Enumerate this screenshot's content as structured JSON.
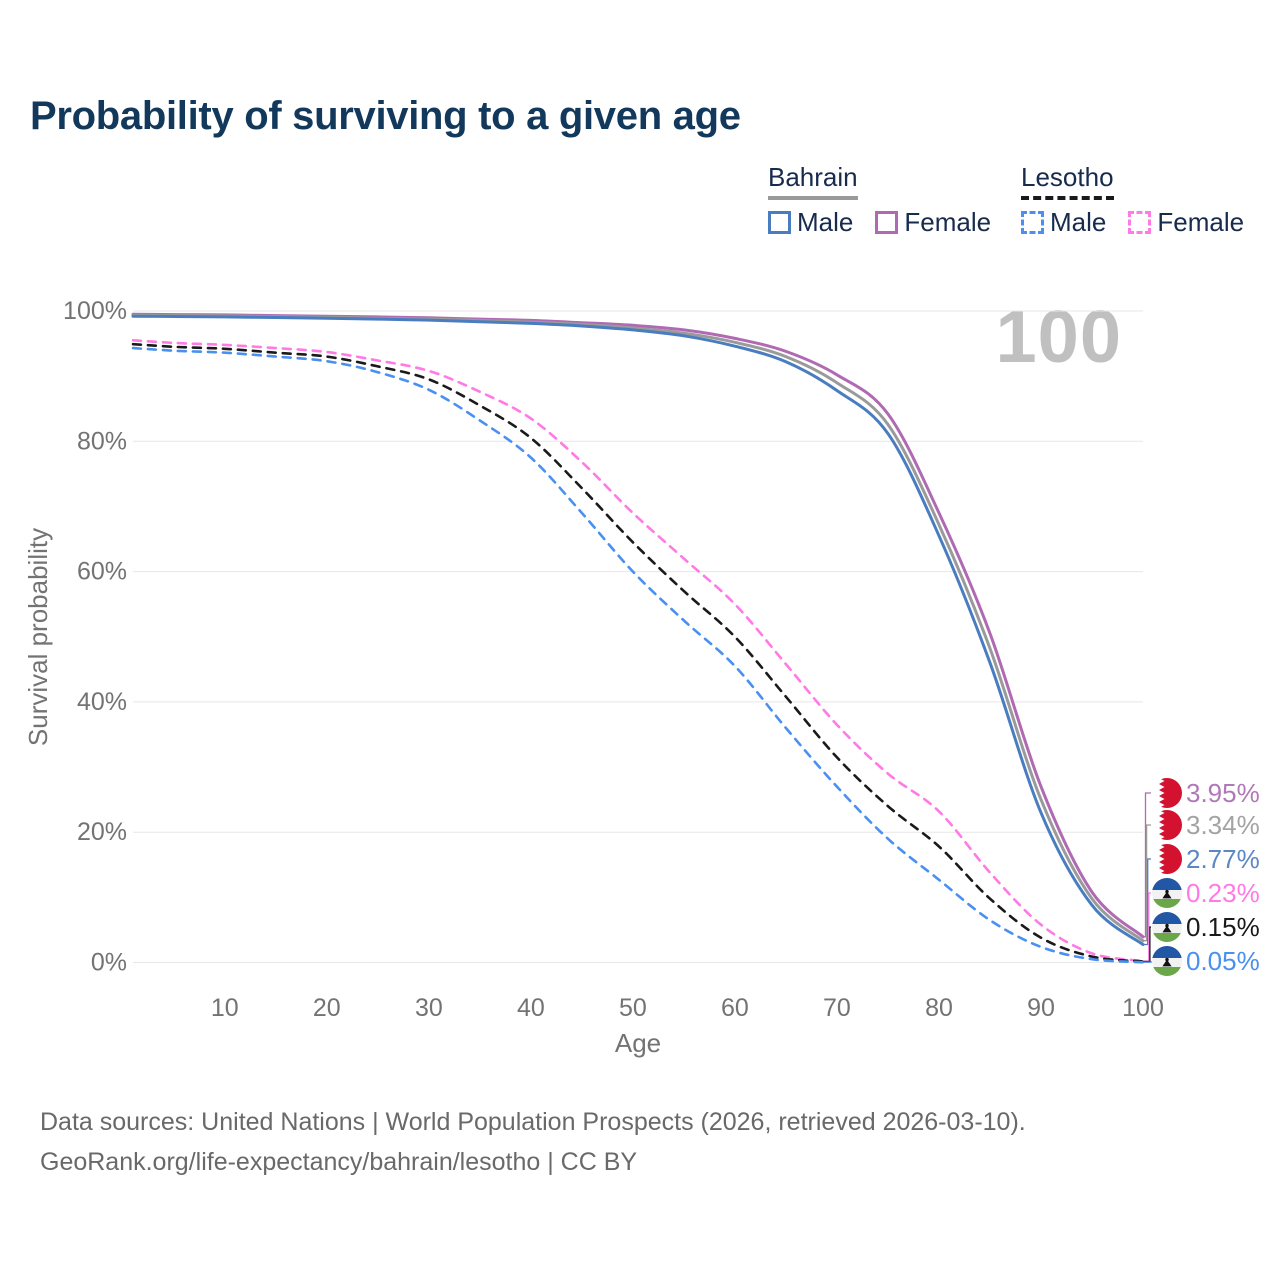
{
  "title": "Probability of surviving to a given age",
  "watermark_age_label": "100",
  "legend": {
    "groups": [
      {
        "label": "Bahrain",
        "line_style": "solid",
        "underline_color": "#9a9a9a",
        "items": [
          {
            "label": "Male",
            "color": "#4a7dc0"
          },
          {
            "label": "Female",
            "color": "#b06ab3"
          }
        ]
      },
      {
        "label": "Lesotho",
        "line_style": "dashed",
        "underline_color": "#1a1a1a",
        "items": [
          {
            "label": "Male",
            "color": "#4a90f0"
          },
          {
            "label": "Female",
            "color": "#ff7ae5"
          }
        ]
      }
    ]
  },
  "chart_data": {
    "type": "line",
    "xlabel": "Age",
    "ylabel": "Survival probability",
    "xlim": [
      1,
      100
    ],
    "ylim": [
      0,
      100
    ],
    "grid": "horizontal",
    "legend_position": "top-right",
    "x_ticks": [
      10,
      20,
      30,
      40,
      50,
      60,
      70,
      80,
      90,
      100
    ],
    "y_ticks": [
      {
        "value": 0,
        "label": "0%"
      },
      {
        "value": 20,
        "label": "20%"
      },
      {
        "value": 40,
        "label": "40%"
      },
      {
        "value": 60,
        "label": "60%"
      },
      {
        "value": 80,
        "label": "80%"
      },
      {
        "value": 100,
        "label": "100%"
      }
    ],
    "ages": [
      1,
      5,
      10,
      15,
      20,
      25,
      30,
      35,
      40,
      45,
      50,
      55,
      60,
      65,
      70,
      75,
      80,
      85,
      90,
      95,
      100
    ],
    "series": [
      {
        "id": "bahrain-female",
        "name": "Bahrain Female",
        "country": "Bahrain",
        "sex": "Female",
        "color": "#b06ab3",
        "label_color": "#b078b8",
        "dash": "solid",
        "flag": "bahrain",
        "end_label": "3.95%",
        "values": [
          99.5,
          99.45,
          99.4,
          99.3,
          99.2,
          99.1,
          98.95,
          98.75,
          98.55,
          98.2,
          97.8,
          97.1,
          95.8,
          93.8,
          90.2,
          84.2,
          69.0,
          50.5,
          27.0,
          10.8,
          3.95
        ]
      },
      {
        "id": "bahrain-both",
        "name": "Bahrain",
        "country": "Bahrain",
        "sex": "Both",
        "color": "#9a9a9a",
        "label_color": "#a3a3a3",
        "dash": "solid",
        "flag": "bahrain",
        "end_label": "3.34%",
        "values": [
          99.35,
          99.3,
          99.25,
          99.15,
          99.05,
          98.9,
          98.75,
          98.55,
          98.3,
          97.95,
          97.4,
          96.6,
          95.2,
          93.0,
          89.0,
          82.6,
          67.2,
          48.2,
          25.0,
          9.8,
          3.34
        ]
      },
      {
        "id": "bahrain-male",
        "name": "Bahrain Male",
        "country": "Bahrain",
        "sex": "Male",
        "color": "#4a7dc0",
        "label_color": "#5b87c5",
        "dash": "solid",
        "flag": "bahrain",
        "end_label": "2.77%",
        "values": [
          99.2,
          99.15,
          99.1,
          99.0,
          98.9,
          98.75,
          98.6,
          98.35,
          98.1,
          97.7,
          97.1,
          96.2,
          94.6,
          92.2,
          87.8,
          81.2,
          65.5,
          46.0,
          23.0,
          8.8,
          2.77
        ]
      },
      {
        "id": "lesotho-female",
        "name": "Lesotho Female",
        "country": "Lesotho",
        "sex": "Female",
        "color": "#ff7ae5",
        "label_color": "#ff7ae5",
        "dash": "dashed",
        "flag": "lesotho",
        "end_label": "0.23%",
        "values": [
          95.5,
          95.1,
          94.8,
          94.3,
          93.7,
          92.4,
          90.8,
          87.6,
          83.5,
          76.8,
          69.0,
          62.0,
          55.0,
          45.8,
          36.5,
          29.0,
          23.2,
          13.8,
          5.8,
          1.4,
          0.23
        ]
      },
      {
        "id": "lesotho-both",
        "name": "Lesotho",
        "country": "Lesotho",
        "sex": "Both",
        "color": "#1a1a1a",
        "label_color": "#1a1a1a",
        "dash": "dashed",
        "flag": "lesotho",
        "end_label": "0.15%",
        "values": [
          94.9,
          94.5,
          94.2,
          93.6,
          93.0,
          91.5,
          89.5,
          85.5,
          80.5,
          72.8,
          64.5,
          57.0,
          50.0,
          40.8,
          31.5,
          24.0,
          17.8,
          9.8,
          3.8,
          0.9,
          0.15
        ]
      },
      {
        "id": "lesotho-male",
        "name": "Lesotho Male",
        "country": "Lesotho",
        "sex": "Male",
        "color": "#4a90f0",
        "label_color": "#4a90f0",
        "dash": "dashed",
        "flag": "lesotho",
        "end_label": "0.05%",
        "values": [
          94.3,
          93.9,
          93.6,
          93.0,
          92.3,
          90.6,
          87.9,
          83.2,
          77.5,
          69.0,
          60.0,
          52.5,
          45.5,
          36.0,
          27.0,
          19.0,
          12.7,
          6.5,
          2.4,
          0.5,
          0.05
        ]
      }
    ]
  },
  "footer": {
    "line1": "Data sources: United Nations | World Population Prospects (2026, retrieved 2026-03-10).",
    "line2": "GeoRank.org/life-expectancy/bahrain/lesotho | CC BY"
  }
}
